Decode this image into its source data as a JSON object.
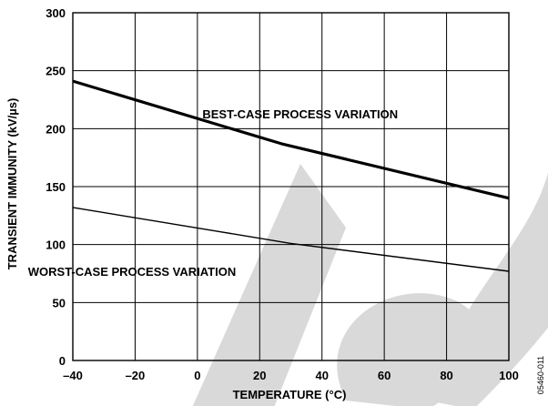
{
  "figure_id": "05460-011",
  "chart_data": {
    "type": "line",
    "xlabel": "TEMPERATURE (°C)",
    "ylabel": "TRANSIENT IMMUNITY (kV/µs)",
    "xlim": [
      -40,
      100
    ],
    "ylim": [
      0,
      300
    ],
    "x_ticks": [
      -40,
      -20,
      0,
      20,
      40,
      60,
      80,
      100
    ],
    "x_tick_labels": [
      "–40",
      "–20",
      "0",
      "20",
      "40",
      "60",
      "80",
      "100"
    ],
    "y_ticks": [
      0,
      50,
      100,
      150,
      200,
      250,
      300
    ],
    "y_tick_labels": [
      "0",
      "50",
      "100",
      "150",
      "200",
      "250",
      "300"
    ],
    "grid": true,
    "legend": "none",
    "series": [
      {
        "x": [
          -40,
          27,
          100
        ],
        "y": [
          241,
          187,
          140
        ],
        "stroke": "#000000",
        "weight": "thick"
      },
      {
        "x": [
          -40,
          30,
          100
        ],
        "y": [
          132,
          101,
          77
        ],
        "stroke": "#000000",
        "weight": "thin"
      }
    ],
    "annotations": [
      {
        "text": "BEST-CASE PROCESS VARIATION",
        "x": 33,
        "y": 209
      },
      {
        "text": "WORST-CASE PROCESS VARIATION",
        "x": -21,
        "y": 73
      }
    ]
  }
}
